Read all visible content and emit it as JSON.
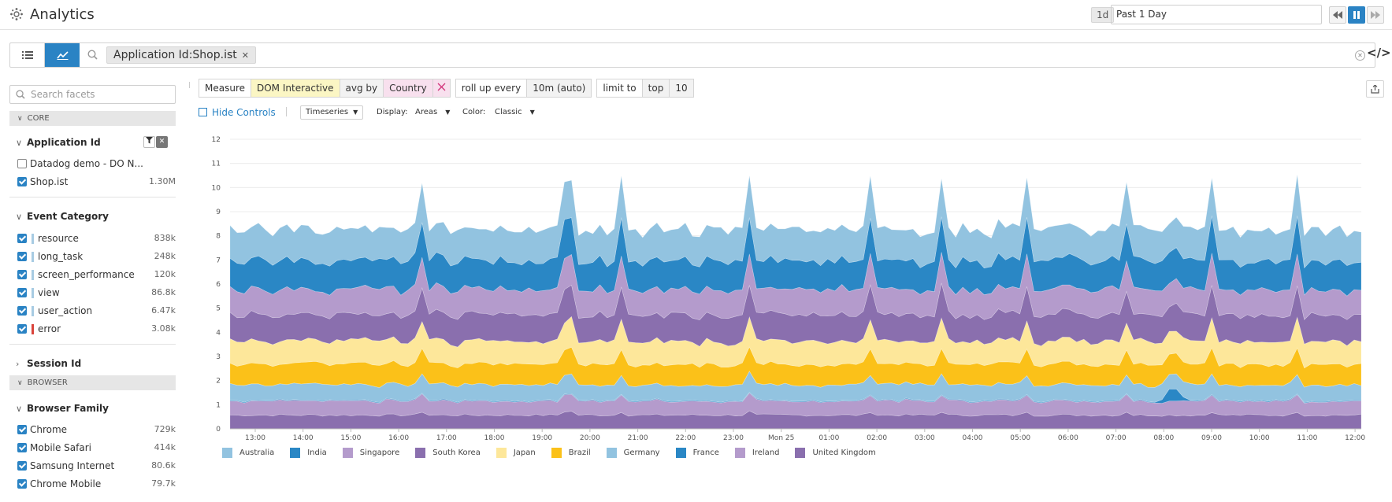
{
  "header": {
    "title": "Analytics",
    "time_badge": "1d",
    "time_range": "Past 1 Day"
  },
  "search": {
    "chip": "Application Id:Shop.ist"
  },
  "sidebar": {
    "search_placeholder": "Search facets",
    "sections": {
      "core": "CORE",
      "browser": "BROWSER"
    },
    "application_id": {
      "title": "Application Id",
      "items": [
        {
          "label": "Datadog demo - DO N...",
          "count": "",
          "checked": false
        },
        {
          "label": "Shop.ist",
          "count": "1.30M",
          "checked": true
        }
      ]
    },
    "event_category": {
      "title": "Event Category",
      "items": [
        {
          "label": "resource",
          "count": "838k",
          "color": "#a7cbe3"
        },
        {
          "label": "long_task",
          "count": "248k",
          "color": "#a7cbe3"
        },
        {
          "label": "screen_performance",
          "count": "120k",
          "color": "#a7cbe3"
        },
        {
          "label": "view",
          "count": "86.8k",
          "color": "#a7cbe3"
        },
        {
          "label": "user_action",
          "count": "6.47k",
          "color": "#a7cbe3"
        },
        {
          "label": "error",
          "count": "3.08k",
          "color": "#d9433a"
        }
      ]
    },
    "session_id": {
      "title": "Session Id"
    },
    "browser_family": {
      "title": "Browser Family",
      "items": [
        {
          "label": "Chrome",
          "count": "729k"
        },
        {
          "label": "Mobile Safari",
          "count": "414k"
        },
        {
          "label": "Samsung Internet",
          "count": "80.6k"
        },
        {
          "label": "Chrome Mobile",
          "count": "79.7k"
        }
      ]
    }
  },
  "query": {
    "measure_label": "Measure",
    "measure_value": "DOM Interactive",
    "avg_by_label": "avg by",
    "group_value": "Country",
    "rollup_label": "roll up every",
    "rollup_value": "10m (auto)",
    "limit_label": "limit to",
    "limit_dir": "top",
    "limit_n": "10"
  },
  "controls": {
    "hide_controls": "Hide Controls",
    "viz": "Timeseries",
    "display_label": "Display:",
    "display_value": "Areas",
    "color_label": "Color:",
    "color_value": "Classic"
  },
  "colors": {
    "accent": "#2a83c4"
  },
  "chart_data": {
    "type": "area",
    "stacked": true,
    "ylim": [
      0,
      12
    ],
    "yticks": [
      0,
      1,
      2,
      3,
      4,
      5,
      6,
      7,
      8,
      9,
      10,
      11,
      12
    ],
    "xticks": [
      "13:00",
      "14:00",
      "15:00",
      "16:00",
      "17:00",
      "18:00",
      "19:00",
      "20:00",
      "21:00",
      "22:00",
      "23:00",
      "Mon 25",
      "01:00",
      "02:00",
      "03:00",
      "04:00",
      "05:00",
      "06:00",
      "07:00",
      "08:00",
      "09:00",
      "10:00",
      "11:00",
      "12:00"
    ],
    "grid": true,
    "legend_position": "bottom-left",
    "series": [
      {
        "name": "Australia",
        "color": "#92c3e0",
        "avg": 1.3
      },
      {
        "name": "India",
        "color": "#2a87c5",
        "avg": 1.2
      },
      {
        "name": "Singapore",
        "color": "#b49bcc",
        "avg": 1.05
      },
      {
        "name": "South Korea",
        "color": "#8a6fae",
        "avg": 1.1
      },
      {
        "name": "Japan",
        "color": "#fde79a",
        "avg": 0.95
      },
      {
        "name": "Brazil",
        "color": "#fbc119",
        "avg": 0.85
      },
      {
        "name": "Germany",
        "color": "#92c3e0",
        "avg": 0.65
      },
      {
        "name": "France",
        "color": "#2a87c5",
        "avg": 0.08
      },
      {
        "name": "Ireland",
        "color": "#b49bcc",
        "avg": 0.58
      },
      {
        "name": "United Kingdom",
        "color": "#8a6fae",
        "avg": 0.57
      }
    ]
  }
}
